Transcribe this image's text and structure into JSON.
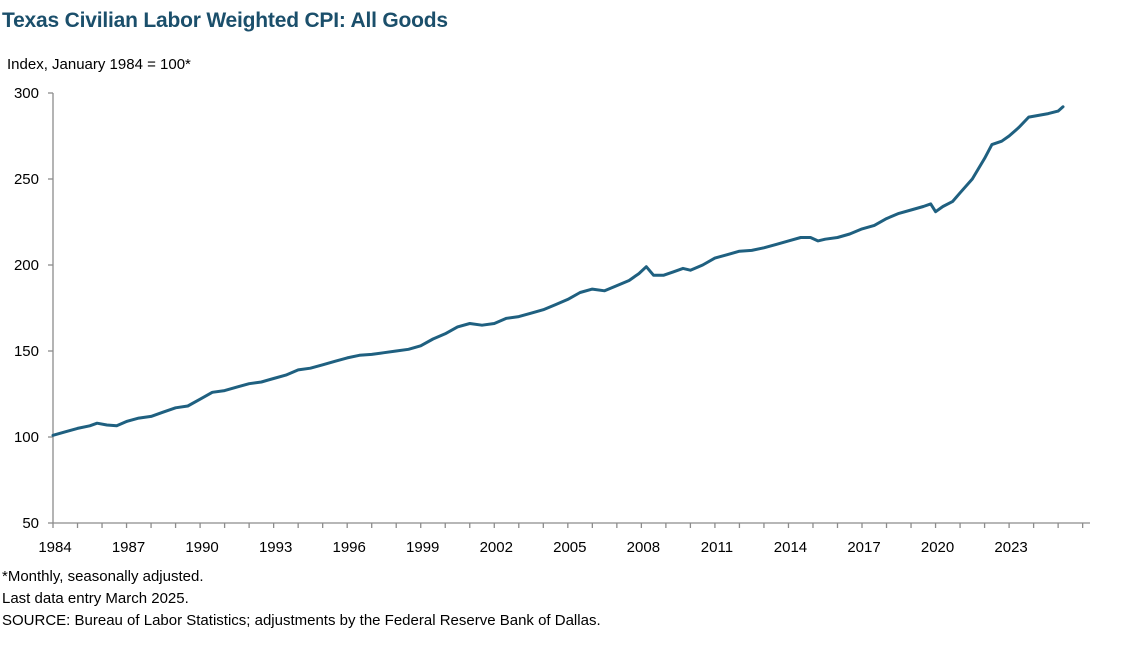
{
  "chart_data": {
    "type": "line",
    "title": "Texas Civilian Labor Weighted CPI: All Goods",
    "ylabel": "Index, January 1984 = 100*",
    "xlabel": "",
    "ylim": [
      50,
      300
    ],
    "xlim": [
      1984.0,
      2026.3
    ],
    "yticks": [
      50,
      100,
      150,
      200,
      250,
      300
    ],
    "xticks": [
      "1984",
      "1987",
      "1990",
      "1993",
      "1996",
      "1999",
      "2002",
      "2005",
      "2008",
      "2011",
      "2014",
      "2017",
      "2020",
      "2023"
    ],
    "grid": false,
    "legend": "none",
    "line_color": "#1f6080",
    "series": [
      {
        "name": "Texas Civilian Labor Weighted CPI: All Goods",
        "x": [
          1984.0,
          1984.5,
          1985.0,
          1985.5,
          1985.8,
          1986.2,
          1986.6,
          1987.0,
          1987.5,
          1988.0,
          1988.5,
          1989.0,
          1989.5,
          1990.0,
          1990.5,
          1991.0,
          1991.5,
          1992.0,
          1992.5,
          1993.0,
          1993.5,
          1994.0,
          1994.5,
          1995.0,
          1995.5,
          1996.0,
          1996.5,
          1997.0,
          1997.5,
          1998.0,
          1998.5,
          1999.0,
          1999.5,
          2000.0,
          2000.5,
          2001.0,
          2001.5,
          2002.0,
          2002.5,
          2003.0,
          2003.5,
          2004.0,
          2004.5,
          2005.0,
          2005.5,
          2006.0,
          2006.5,
          2007.0,
          2007.5,
          2007.9,
          2008.2,
          2008.5,
          2008.9,
          2009.3,
          2009.7,
          2010.0,
          2010.5,
          2011.0,
          2011.5,
          2012.0,
          2012.5,
          2013.0,
          2013.5,
          2014.0,
          2014.5,
          2014.9,
          2015.2,
          2015.5,
          2016.0,
          2016.5,
          2017.0,
          2017.5,
          2018.0,
          2018.5,
          2019.0,
          2019.5,
          2019.8,
          2020.0,
          2020.3,
          2020.7,
          2021.0,
          2021.5,
          2022.0,
          2022.3,
          2022.7,
          2023.0,
          2023.4,
          2023.8,
          2024.2,
          2024.6,
          2025.0,
          2025.2
        ],
        "values": [
          101,
          103,
          105,
          106.5,
          108,
          107,
          106.5,
          109,
          111,
          112,
          114.5,
          117,
          118,
          122,
          126,
          127,
          129,
          131,
          132,
          134,
          136,
          139,
          140,
          142,
          144,
          146,
          147.5,
          148,
          149,
          150,
          151,
          153,
          157,
          160,
          164,
          166,
          165,
          166,
          169,
          170,
          172,
          174,
          177,
          180,
          184,
          186,
          185,
          188,
          191,
          195,
          199,
          194,
          194,
          196,
          198,
          197,
          200,
          204,
          206,
          208,
          208.5,
          210,
          212,
          214,
          216,
          216,
          214,
          215,
          216,
          218,
          221,
          223,
          227,
          230,
          232,
          234,
          235.5,
          231,
          234,
          237,
          242,
          250,
          262,
          270,
          272,
          275,
          280,
          286,
          287,
          288,
          289.5,
          292
        ]
      }
    ]
  },
  "footnotes": [
    "*Monthly, seasonally adjusted.",
    "Last data entry March 2025.",
    "SOURCE: Bureau of Labor Statistics; adjustments by the Federal Reserve Bank of Dallas."
  ]
}
